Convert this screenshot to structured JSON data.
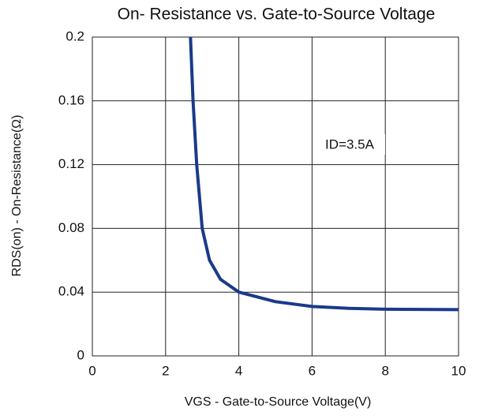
{
  "chart_data": {
    "type": "line",
    "title": "On- Resistance vs. Gate-to-Source Voltage",
    "xlabel": "VGS - Gate-to-Source Voltage(V)",
    "ylabel": "RDS(on) - On-Resistance(Ω)",
    "annotation": "ID=3.5A",
    "x": [
      2.68,
      2.75,
      2.85,
      3.0,
      3.2,
      3.5,
      4,
      5,
      6,
      7,
      8,
      10
    ],
    "series": [
      {
        "color": "#1a3a8a",
        "values": [
          0.2,
          0.16,
          0.12,
          0.08,
          0.06,
          0.048,
          0.04,
          0.034,
          0.031,
          0.0298,
          0.0293,
          0.029
        ]
      }
    ],
    "xlim": [
      0,
      10
    ],
    "xticks": [
      0,
      2,
      4,
      6,
      8,
      10
    ],
    "ylim": [
      0,
      0.2
    ],
    "yticks": [
      0,
      0.04,
      0.08,
      0.12,
      0.16,
      0.2
    ],
    "grid": true
  }
}
